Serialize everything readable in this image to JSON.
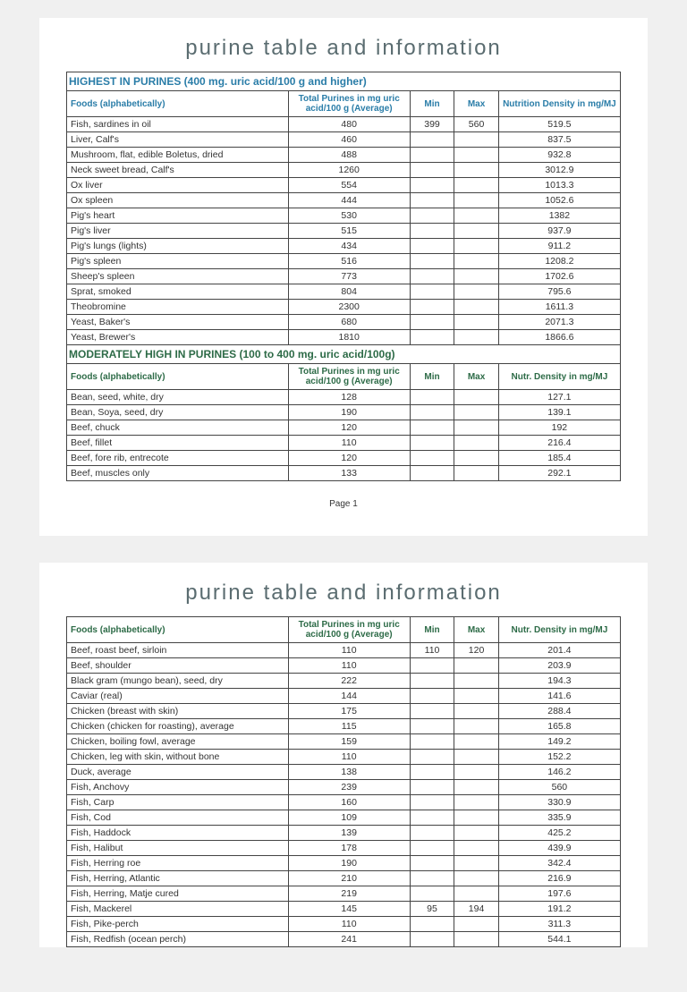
{
  "title": "purine table and information",
  "page_label": "Page 1",
  "colors": {
    "highest_header": "#2a7da8",
    "moderate_header": "#2d6b47",
    "title_color": "#5a6c70"
  },
  "columns": {
    "foods": "Foods (alphabetically)",
    "avg": "Total Purines in mg uric acid/100 g (Average)",
    "min": "Min",
    "max": "Max",
    "density_long": "Nutrition Density in mg/MJ",
    "density_short": "Nutr. Density in mg/MJ"
  },
  "highest": {
    "title": "HIGHEST IN PURINES (400 mg. uric acid/100 g and higher)",
    "rows": [
      {
        "food": "Fish, sardines in oil",
        "avg": "480",
        "min": "399",
        "max": "560",
        "dens": "519.5"
      },
      {
        "food": "Liver, Calf's",
        "avg": "460",
        "min": "",
        "max": "",
        "dens": "837.5"
      },
      {
        "food": "Mushroom, flat, edible Boletus, dried",
        "avg": "488",
        "min": "",
        "max": "",
        "dens": "932.8"
      },
      {
        "food": "Neck sweet bread, Calf's",
        "avg": "1260",
        "min": "",
        "max": "",
        "dens": "3012.9"
      },
      {
        "food": "Ox liver",
        "avg": "554",
        "min": "",
        "max": "",
        "dens": "1013.3"
      },
      {
        "food": "Ox spleen",
        "avg": "444",
        "min": "",
        "max": "",
        "dens": "1052.6"
      },
      {
        "food": "Pig's heart",
        "avg": "530",
        "min": "",
        "max": "",
        "dens": "1382"
      },
      {
        "food": "Pig's liver",
        "avg": "515",
        "min": "",
        "max": "",
        "dens": "937.9"
      },
      {
        "food": "Pig's lungs (lights)",
        "avg": "434",
        "min": "",
        "max": "",
        "dens": "911.2"
      },
      {
        "food": "Pig's spleen",
        "avg": "516",
        "min": "",
        "max": "",
        "dens": "1208.2"
      },
      {
        "food": "Sheep's spleen",
        "avg": "773",
        "min": "",
        "max": "",
        "dens": "1702.6"
      },
      {
        "food": "Sprat, smoked",
        "avg": "804",
        "min": "",
        "max": "",
        "dens": "795.6"
      },
      {
        "food": "Theobromine",
        "avg": "2300",
        "min": "",
        "max": "",
        "dens": "1611.3"
      },
      {
        "food": "Yeast, Baker's",
        "avg": "680",
        "min": "",
        "max": "",
        "dens": "2071.3"
      },
      {
        "food": "Yeast, Brewer's",
        "avg": "1810",
        "min": "",
        "max": "",
        "dens": "1866.6"
      }
    ]
  },
  "moderate": {
    "title": "MODERATELY HIGH IN PURINES (100 to 400 mg. uric acid/100g)",
    "rows_p1": [
      {
        "food": "Bean, seed, white, dry",
        "avg": "128",
        "min": "",
        "max": "",
        "dens": "127.1"
      },
      {
        "food": "Bean, Soya, seed, dry",
        "avg": "190",
        "min": "",
        "max": "",
        "dens": "139.1"
      },
      {
        "food": "Beef, chuck",
        "avg": "120",
        "min": "",
        "max": "",
        "dens": "192"
      },
      {
        "food": "Beef, fillet",
        "avg": "110",
        "min": "",
        "max": "",
        "dens": "216.4"
      },
      {
        "food": "Beef, fore rib, entrecote",
        "avg": "120",
        "min": "",
        "max": "",
        "dens": "185.4"
      },
      {
        "food": "Beef, muscles only",
        "avg": "133",
        "min": "",
        "max": "",
        "dens": "292.1"
      }
    ],
    "rows_p2": [
      {
        "food": "Beef, roast beef, sirloin",
        "avg": "110",
        "min": "110",
        "max": "120",
        "dens": "201.4"
      },
      {
        "food": "Beef, shoulder",
        "avg": "110",
        "min": "",
        "max": "",
        "dens": "203.9"
      },
      {
        "food": "Black gram (mungo bean), seed, dry",
        "avg": "222",
        "min": "",
        "max": "",
        "dens": "194.3"
      },
      {
        "food": "Caviar (real)",
        "avg": "144",
        "min": "",
        "max": "",
        "dens": "141.6"
      },
      {
        "food": "Chicken (breast with skin)",
        "avg": "175",
        "min": "",
        "max": "",
        "dens": "288.4"
      },
      {
        "food": "Chicken (chicken for roasting), average",
        "avg": "115",
        "min": "",
        "max": "",
        "dens": "165.8"
      },
      {
        "food": "Chicken, boiling fowl, average",
        "avg": "159",
        "min": "",
        "max": "",
        "dens": "149.2"
      },
      {
        "food": "Chicken, leg with skin, without bone",
        "avg": "110",
        "min": "",
        "max": "",
        "dens": "152.2"
      },
      {
        "food": "Duck, average",
        "avg": "138",
        "min": "",
        "max": "",
        "dens": "146.2"
      },
      {
        "food": "Fish, Anchovy",
        "avg": "239",
        "min": "",
        "max": "",
        "dens": "560"
      },
      {
        "food": "Fish, Carp",
        "avg": "160",
        "min": "",
        "max": "",
        "dens": "330.9"
      },
      {
        "food": "Fish, Cod",
        "avg": "109",
        "min": "",
        "max": "",
        "dens": "335.9"
      },
      {
        "food": "Fish, Haddock",
        "avg": "139",
        "min": "",
        "max": "",
        "dens": "425.2"
      },
      {
        "food": "Fish, Halibut",
        "avg": "178",
        "min": "",
        "max": "",
        "dens": "439.9"
      },
      {
        "food": "Fish, Herring roe",
        "avg": "190",
        "min": "",
        "max": "",
        "dens": "342.4"
      },
      {
        "food": "Fish, Herring, Atlantic",
        "avg": "210",
        "min": "",
        "max": "",
        "dens": "216.9"
      },
      {
        "food": "Fish, Herring, Matje cured",
        "avg": "219",
        "min": "",
        "max": "",
        "dens": "197.6"
      },
      {
        "food": "Fish, Mackerel",
        "avg": "145",
        "min": "95",
        "max": "194",
        "dens": "191.2"
      },
      {
        "food": "Fish, Pike-perch",
        "avg": "110",
        "min": "",
        "max": "",
        "dens": "311.3"
      },
      {
        "food": "Fish, Redfish (ocean perch)",
        "avg": "241",
        "min": "",
        "max": "",
        "dens": "544.1"
      }
    ]
  }
}
